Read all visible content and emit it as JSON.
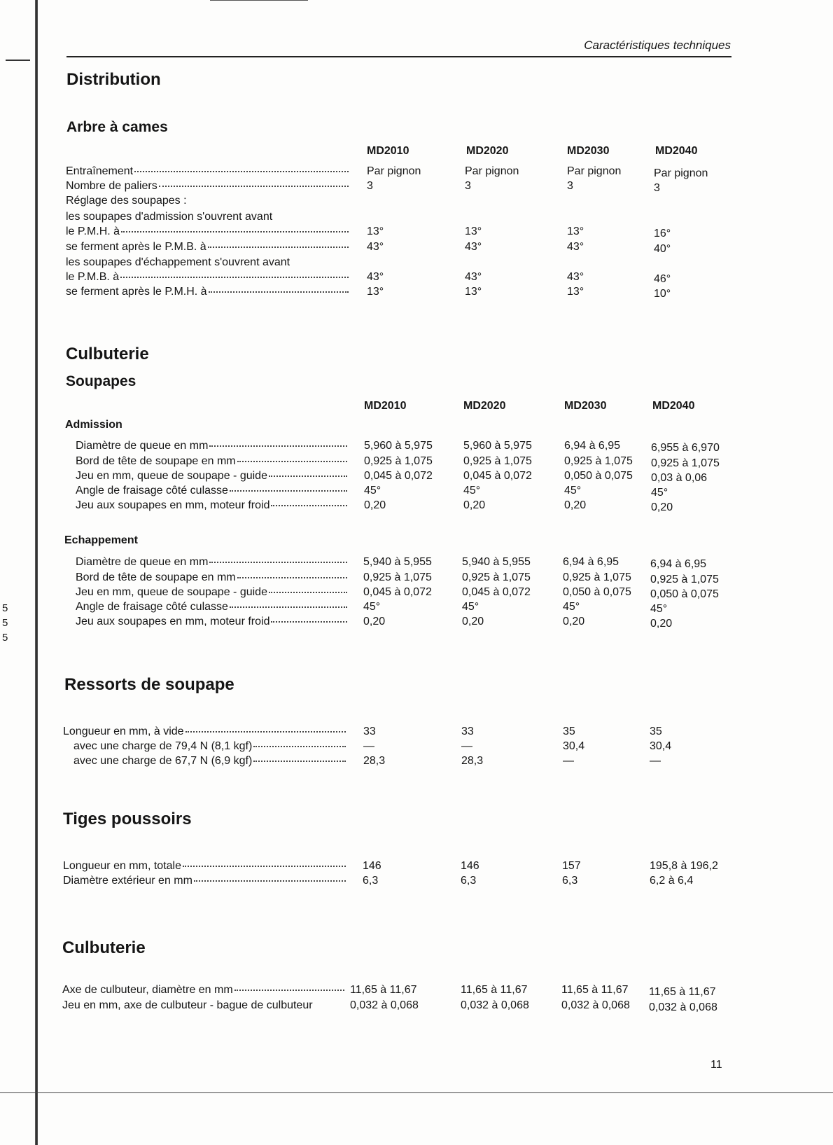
{
  "running_head": "Caractéristiques techniques",
  "page_number": "11",
  "margin_numbers": [
    "5",
    "5",
    "5"
  ],
  "models": [
    "MD2010",
    "MD2020",
    "MD2030",
    "MD2040"
  ],
  "distribution": {
    "title": "Distribution",
    "subtitle": "Arbre à cames",
    "rows": [
      {
        "label": "Entraînement",
        "values": [
          "Par pignon",
          "Par pignon",
          "Par pignon",
          "Par pignon"
        ]
      },
      {
        "label": "Nombre de paliers",
        "values": [
          "3",
          "3",
          "3",
          "3"
        ]
      },
      {
        "label": "Réglage des soupapes :",
        "values": []
      },
      {
        "label": "les soupapes d'admission s'ouvrent avant",
        "values": []
      },
      {
        "label": "le P.M.H. à",
        "values": [
          "13°",
          "13°",
          "13°",
          "16°"
        ]
      },
      {
        "label": "se ferment après le P.M.B. à",
        "values": [
          "43°",
          "43°",
          "43°",
          "40°"
        ]
      },
      {
        "label": "les soupapes d'échappement s'ouvrent avant",
        "values": []
      },
      {
        "label": "le P.M.B. à",
        "values": [
          "43°",
          "43°",
          "43°",
          "46°"
        ]
      },
      {
        "label": "se ferment après le P.M.H. à",
        "values": [
          "13°",
          "13°",
          "13°",
          "10°"
        ]
      }
    ]
  },
  "culbuterie": {
    "title": "Culbuterie",
    "subtitle": "Soupapes",
    "admission": {
      "title": "Admission",
      "rows": [
        {
          "label": "Diamètre de queue en mm",
          "values": [
            "5,960 à 5,975",
            "5,960 à 5,975",
            "6,94 à 6,95",
            "6,955 à 6,970"
          ]
        },
        {
          "label": "Bord de tête de soupape en mm",
          "values": [
            "0,925 à 1,075",
            "0,925 à 1,075",
            "0,925 à 1,075",
            "0,925 à 1,075"
          ]
        },
        {
          "label": "Jeu en mm, queue de soupape - guide",
          "values": [
            "0,045 à 0,072",
            "0,045 à 0,072",
            "0,050 à 0,075",
            "0,03 à 0,06"
          ]
        },
        {
          "label": "Angle de fraisage côté culasse",
          "values": [
            "45°",
            "45°",
            "45°",
            "45°"
          ]
        },
        {
          "label": "Jeu aux soupapes en mm, moteur froid",
          "values": [
            "0,20",
            "0,20",
            "0,20",
            "0,20"
          ]
        }
      ]
    },
    "echappement": {
      "title": "Echappement",
      "rows": [
        {
          "label": "Diamètre de queue en mm",
          "values": [
            "5,940 à 5,955",
            "5,940 à 5,955",
            "6,94 à 6,95",
            "6,94 à 6,95"
          ]
        },
        {
          "label": "Bord de tête de soupape en mm",
          "values": [
            "0,925 à 1,075",
            "0,925 à 1,075",
            "0,925 à 1,075",
            "0,925 à 1,075"
          ]
        },
        {
          "label": "Jeu en mm, queue de soupape - guide",
          "values": [
            "0,045 à 0,072",
            "0,045 à 0,072",
            "0,050 à 0,075",
            "0,050 à 0,075"
          ]
        },
        {
          "label": "Angle de fraisage côté culasse",
          "values": [
            "45°",
            "45°",
            "45°",
            "45°"
          ]
        },
        {
          "label": "Jeu aux soupapes en mm, moteur froid",
          "values": [
            "0,20",
            "0,20",
            "0,20",
            "0,20"
          ]
        }
      ]
    }
  },
  "ressorts": {
    "title": "Ressorts de soupape",
    "rows": [
      {
        "label": "Longueur en mm, à vide",
        "values": [
          "33",
          "33",
          "35",
          "35"
        ]
      },
      {
        "label": "avec une charge de 79,4 N (8,1 kgf)",
        "values": [
          "—",
          "—",
          "30,4",
          "30,4"
        ]
      },
      {
        "label": "avec une charge de 67,7 N (6,9 kgf)",
        "values": [
          "28,3",
          "28,3",
          "—",
          "—"
        ]
      }
    ]
  },
  "tiges": {
    "title": "Tiges poussoirs",
    "rows": [
      {
        "label": "Longueur en mm, totale",
        "values": [
          "146",
          "146",
          "157",
          "195,8 à 196,2"
        ]
      },
      {
        "label": "Diamètre extérieur en mm",
        "values": [
          "6,3",
          "6,3",
          "6,3",
          "6,2 à 6,4"
        ]
      }
    ]
  },
  "culbuterie2": {
    "title": "Culbuterie",
    "rows": [
      {
        "label": "Axe de culbuteur, diamètre en mm",
        "values": [
          "11,65 à 11,67",
          "11,65 à 11,67",
          "11,65 à 11,67",
          "11,65 à 11,67"
        ]
      },
      {
        "label": "Jeu en mm, axe de culbuteur - bague de culbuteur",
        "values": [
          "0,032 à 0,068",
          "0,032 à 0,068",
          "0,032 à 0,068",
          "0,032 à 0,068"
        ]
      }
    ]
  }
}
